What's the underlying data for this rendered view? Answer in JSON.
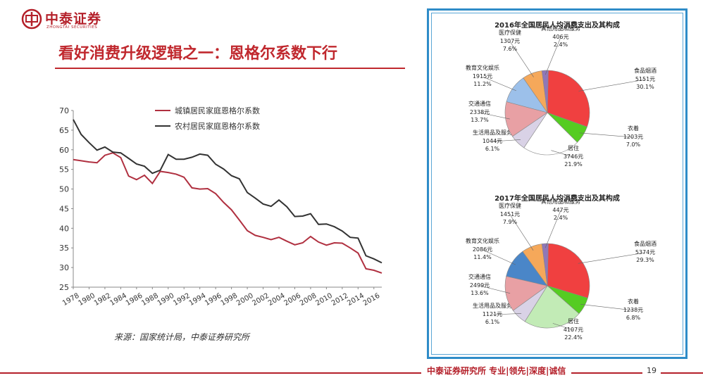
{
  "header": {
    "logo_cn": "中泰证券",
    "logo_en": "ZHONGTAI SECURITIES",
    "brand_color": "#b4202a"
  },
  "title": "看好消费升级逻辑之一：恩格尔系数下行",
  "source": "来源：国家统计局，中泰证券研究所",
  "footer": {
    "text": "中泰证券研究所 专业|领先|深度|诚信",
    "page": "19"
  },
  "chart_data": [
    {
      "type": "line",
      "title": "",
      "xlabel": "",
      "ylabel": "",
      "ylim": [
        25,
        70
      ],
      "yticks": [
        "70",
        "65",
        "60",
        "55",
        "50",
        "45",
        "40",
        "35",
        "30",
        "25"
      ],
      "xticks": [
        "1978",
        "1980",
        "1982",
        "1984",
        "1986",
        "1988",
        "1990",
        "1992",
        "1994",
        "1996",
        "1998",
        "2000",
        "2002",
        "2004",
        "2006",
        "2008",
        "2010",
        "2012",
        "2014",
        "2016"
      ],
      "legend_position": "top-center",
      "grid": false,
      "x": [
        1978,
        1979,
        1980,
        1981,
        1982,
        1983,
        1984,
        1985,
        1986,
        1987,
        1988,
        1989,
        1990,
        1991,
        1992,
        1993,
        1994,
        1995,
        1996,
        1997,
        1998,
        1999,
        2000,
        2001,
        2002,
        2003,
        2004,
        2005,
        2006,
        2007,
        2008,
        2009,
        2010,
        2011,
        2012,
        2013,
        2014,
        2015,
        2016,
        2017
      ],
      "series": [
        {
          "name": "城镇居民家庭恩格尔系数",
          "color": "#b03040",
          "values": [
            57.5,
            57.2,
            56.9,
            56.7,
            58.6,
            59.2,
            58.0,
            53.3,
            52.4,
            53.5,
            51.4,
            54.5,
            54.2,
            53.8,
            53.0,
            50.3,
            50.0,
            50.1,
            48.8,
            46.6,
            44.7,
            42.1,
            39.4,
            38.2,
            37.7,
            37.1,
            37.7,
            36.7,
            35.8,
            36.3,
            37.9,
            36.5,
            35.7,
            36.3,
            36.2,
            35.0,
            33.7,
            29.7,
            29.3,
            28.6
          ]
        },
        {
          "name": "农村居民家庭恩格尔系数",
          "color": "#333333",
          "values": [
            67.7,
            63.9,
            61.8,
            59.9,
            60.7,
            59.4,
            59.2,
            57.8,
            56.4,
            55.8,
            54.0,
            54.8,
            58.8,
            57.6,
            57.6,
            58.1,
            58.9,
            58.6,
            56.3,
            55.1,
            53.4,
            52.6,
            49.1,
            47.7,
            46.2,
            45.6,
            47.2,
            45.5,
            43.0,
            43.1,
            43.7,
            41.0,
            41.1,
            40.4,
            39.3,
            37.7,
            37.5,
            33.0,
            32.2,
            31.2
          ]
        }
      ]
    },
    {
      "type": "pie",
      "title": "2016年全国居民人均消费支出及其构成",
      "slices": [
        {
          "label": "食品烟酒",
          "amount": "5151元",
          "percent_label": "30.1%",
          "value": 30.1,
          "color": "#f04040"
        },
        {
          "label": "衣着",
          "amount": "1203元",
          "percent_label": "7.0%",
          "value": 7.0,
          "color": "#55cc22"
        },
        {
          "label": "居住",
          "amount": "3746元",
          "percent_label": "21.9%",
          "value": 21.9,
          "color": "#ffffff"
        },
        {
          "label": "生活用品及服务",
          "amount": "1044元",
          "percent_label": "6.1%",
          "value": 6.1,
          "color": "#d9d2e6"
        },
        {
          "label": "交通通信",
          "amount": "2338元",
          "percent_label": "13.7%",
          "value": 13.7,
          "color": "#e8a0a4"
        },
        {
          "label": "教育文化娱乐",
          "amount": "1915元",
          "percent_label": "11.2%",
          "value": 11.2,
          "color": "#9cc0ea"
        },
        {
          "label": "医疗保健",
          "amount": "1307元",
          "percent_label": "7.6%",
          "value": 7.6,
          "color": "#f5a85a"
        },
        {
          "label": "其他用品和服务",
          "amount": "406元",
          "percent_label": "2.4%",
          "value": 2.4,
          "color": "#9077b8"
        }
      ]
    },
    {
      "type": "pie",
      "title": "2017年全国居民人均消费支出及其构成",
      "slices": [
        {
          "label": "食品烟酒",
          "amount": "5374元",
          "percent_label": "29.3%",
          "value": 29.3,
          "color": "#f04040"
        },
        {
          "label": "衣着",
          "amount": "1238元",
          "percent_label": "6.8%",
          "value": 6.8,
          "color": "#55cc22"
        },
        {
          "label": "居住",
          "amount": "4107元",
          "percent_label": "22.4%",
          "value": 22.4,
          "color": "#c2ebb6"
        },
        {
          "label": "生活用品及服务",
          "amount": "1121元",
          "percent_label": "6.1%",
          "value": 6.1,
          "color": "#d9d2e6"
        },
        {
          "label": "交通通信",
          "amount": "2499元",
          "percent_label": "13.6%",
          "value": 13.6,
          "color": "#e8a0a4"
        },
        {
          "label": "教育文化娱乐",
          "amount": "2086元",
          "percent_label": "11.4%",
          "value": 11.4,
          "color": "#4a86c8"
        },
        {
          "label": "医疗保健",
          "amount": "1451元",
          "percent_label": "7.9%",
          "value": 7.9,
          "color": "#f5a85a"
        },
        {
          "label": "其他用品和服务",
          "amount": "447元",
          "percent_label": "2.4%",
          "value": 2.4,
          "color": "#9077b8"
        }
      ]
    }
  ]
}
